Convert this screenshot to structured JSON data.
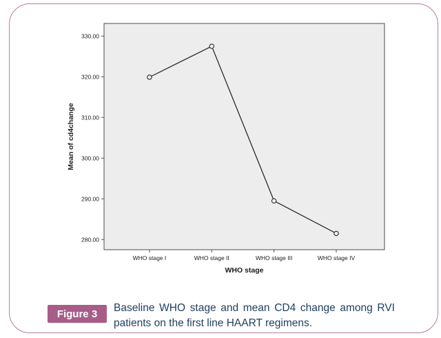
{
  "figure": {
    "label": "Figure 3",
    "caption": "Baseline WHO stage and mean CD4 change among RVI patients on the first line HAART regimens."
  },
  "colors": {
    "card_border": "#b57ba4",
    "badge_bg": "#a75d88",
    "badge_text": "#ffffff",
    "caption_text": "#1e3c5f",
    "plot_bg": "#ededed",
    "plot_border": "#4d4d4d",
    "line": "#1a1a1a",
    "marker_fill": "#ededed",
    "axis_text": "#1a1a1a"
  },
  "chart_data": {
    "type": "line",
    "title": "",
    "categories": [
      "WHO stage I",
      "WHO stage II",
      "WHO stage III",
      "WHO stage IV"
    ],
    "values": [
      319.9,
      327.5,
      289.5,
      281.5
    ],
    "xlabel": "WHO stage",
    "ylabel": "Mean of cd4change",
    "ylim": [
      277.5,
      333.1
    ],
    "yticks": [
      280,
      290,
      300,
      310,
      320,
      330
    ],
    "ytick_labels": [
      "280.00",
      "290.00",
      "300.00",
      "310.00",
      "320.00",
      "330.00"
    ],
    "grid": "off",
    "legend": "none",
    "marker": "open-circle"
  }
}
